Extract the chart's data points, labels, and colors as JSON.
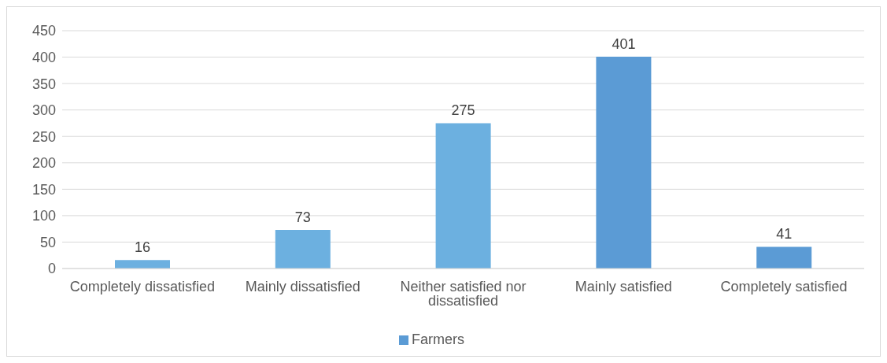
{
  "chart_data": {
    "type": "bar",
    "categories": [
      "Completely dissatisfied",
      "Mainly dissatisfied",
      "Neither satisfied nor dissatisfied",
      "Mainly satisfied",
      "Completely satisfied"
    ],
    "series": [
      {
        "name": "Farmers",
        "color": "#5b9bd5",
        "colors": [
          "#6cb0e0",
          "#6cb0e0",
          "#6cb0e0",
          "#5b9bd5",
          "#5b9bd5"
        ],
        "values": [
          16,
          73,
          275,
          401,
          41
        ]
      }
    ],
    "ylim": [
      0,
      450
    ],
    "yticks": [
      0,
      50,
      100,
      150,
      200,
      250,
      300,
      350,
      400,
      450
    ],
    "grid": "y",
    "legend": "bottom",
    "data_labels": true
  }
}
